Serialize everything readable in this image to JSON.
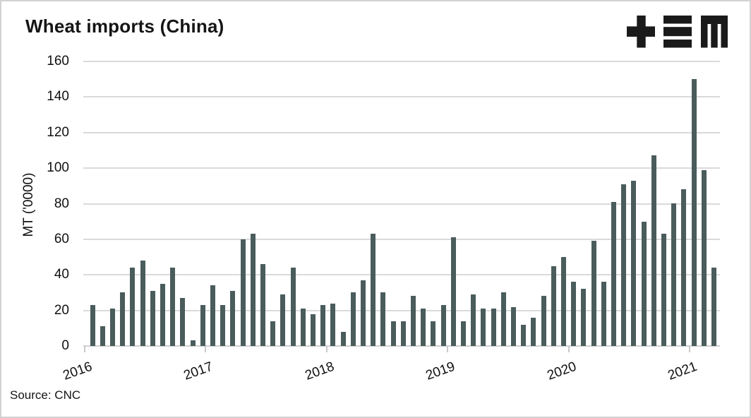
{
  "header": {
    "title": "Wheat imports (China)",
    "logo_icon": "tem-logo"
  },
  "footer": {
    "source": "Source: CNC"
  },
  "chart_data": {
    "type": "bar",
    "title": "Wheat imports (China)",
    "xlabel": "",
    "ylabel": "MT ('0000)",
    "ylim": [
      0,
      160
    ],
    "y_ticks": [
      0,
      20,
      40,
      60,
      80,
      100,
      120,
      140,
      160
    ],
    "x_tick_labels": [
      "2016",
      "2017",
      "2018",
      "2019",
      "2020",
      "2021"
    ],
    "grid": true,
    "legend_position": "none",
    "bar_color": "#4a5c5c",
    "grid_color": "#dadada",
    "frequency": "monthly",
    "series": [
      {
        "name": "2016",
        "values": [
          23,
          11,
          21,
          30,
          44,
          48,
          31,
          35,
          44,
          27,
          3,
          23
        ]
      },
      {
        "name": "2017",
        "values": [
          34,
          23,
          31,
          60,
          63,
          46,
          14,
          29,
          44,
          21,
          18,
          23
        ]
      },
      {
        "name": "2018",
        "values": [
          24,
          8,
          30,
          37,
          63,
          30,
          14,
          14,
          28,
          21,
          14,
          23
        ]
      },
      {
        "name": "2019",
        "values": [
          61,
          14,
          29,
          21,
          21,
          30,
          22,
          12,
          16,
          28,
          45,
          50
        ]
      },
      {
        "name": "2020",
        "values": [
          36,
          32,
          59,
          36,
          81,
          91,
          93,
          70,
          107,
          63,
          80,
          88
        ]
      },
      {
        "name": "2021",
        "values": [
          150,
          99,
          44
        ]
      }
    ]
  }
}
